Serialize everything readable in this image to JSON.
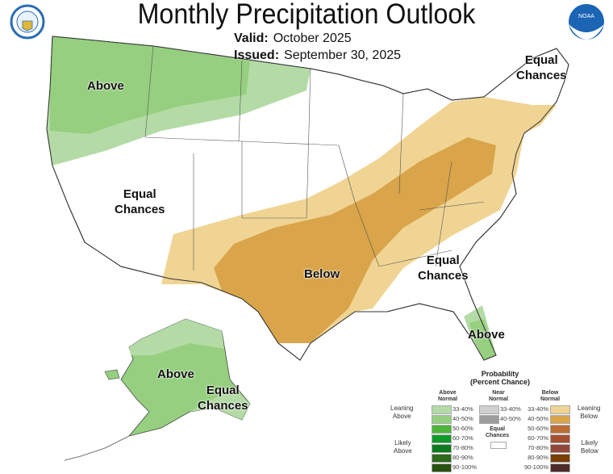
{
  "header": {
    "title": "Monthly Precipitation Outlook",
    "valid_label": "Valid:",
    "valid_value": "October 2025",
    "issued_label": "Issued:",
    "issued_value": "September 30, 2025"
  },
  "logos": {
    "left": "us-department-of-commerce-seal",
    "right": "noaa-logo",
    "noaa_text": "NOAA"
  },
  "map_labels": {
    "above_nw": "Above",
    "equal_west_1": "Equal",
    "equal_west_2": "Chances",
    "equal_ne_1": "Equal",
    "equal_ne_2": "Chances",
    "below_south": "Below",
    "equal_se_1": "Equal",
    "equal_se_2": "Chances",
    "above_fl": "Above",
    "above_ak": "Above",
    "equal_ak_1": "Equal",
    "equal_ak_2": "Chances"
  },
  "colors": {
    "above_33_40": "#b4dba6",
    "above_40_50": "#95cf7f",
    "below_33_40": "#f0d493",
    "below_40_50": "#d9a44a",
    "equal": "#ffffff"
  },
  "legend": {
    "title_1": "Probability",
    "title_2": "(Percent Chance)",
    "above_header_1": "Above",
    "above_header_2": "Normal",
    "near_header_1": "Near",
    "near_header_2": "Normal",
    "below_header_1": "Below",
    "below_header_2": "Normal",
    "leaning_above_1": "Leaning",
    "leaning_above_2": "Above",
    "likely_above_1": "Likely",
    "likely_above_2": "Above",
    "leaning_below_1": "Leaning",
    "leaning_below_2": "Below",
    "likely_below_1": "Likely",
    "likely_below_2": "Below",
    "equal_1": "Equal",
    "equal_2": "Chances",
    "above": [
      {
        "pct": "33-40%",
        "color": "#b4dba6"
      },
      {
        "pct": "40-50%",
        "color": "#95cf7f"
      },
      {
        "pct": "50-60%",
        "color": "#4bb53a"
      },
      {
        "pct": "60-70%",
        "color": "#0f9a2a"
      },
      {
        "pct": "70-80%",
        "color": "#0c7a1e"
      },
      {
        "pct": "80-90%",
        "color": "#2d6a1a"
      },
      {
        "pct": "90-100%",
        "color": "#285112"
      }
    ],
    "near": [
      {
        "pct": "33-40%",
        "color": "#cfcfcf"
      },
      {
        "pct": "40-50%",
        "color": "#9c9c9c"
      }
    ],
    "below": [
      {
        "pct": "33-40%",
        "color": "#f0d493"
      },
      {
        "pct": "40-50%",
        "color": "#d9a44a"
      },
      {
        "pct": "50-60%",
        "color": "#bd6b35"
      },
      {
        "pct": "60-70%",
        "color": "#a45030"
      },
      {
        "pct": "70-80%",
        "color": "#93463a"
      },
      {
        "pct": "80-90%",
        "color": "#7b3f00"
      },
      {
        "pct": "90-100%",
        "color": "#4e2b2b"
      }
    ]
  }
}
